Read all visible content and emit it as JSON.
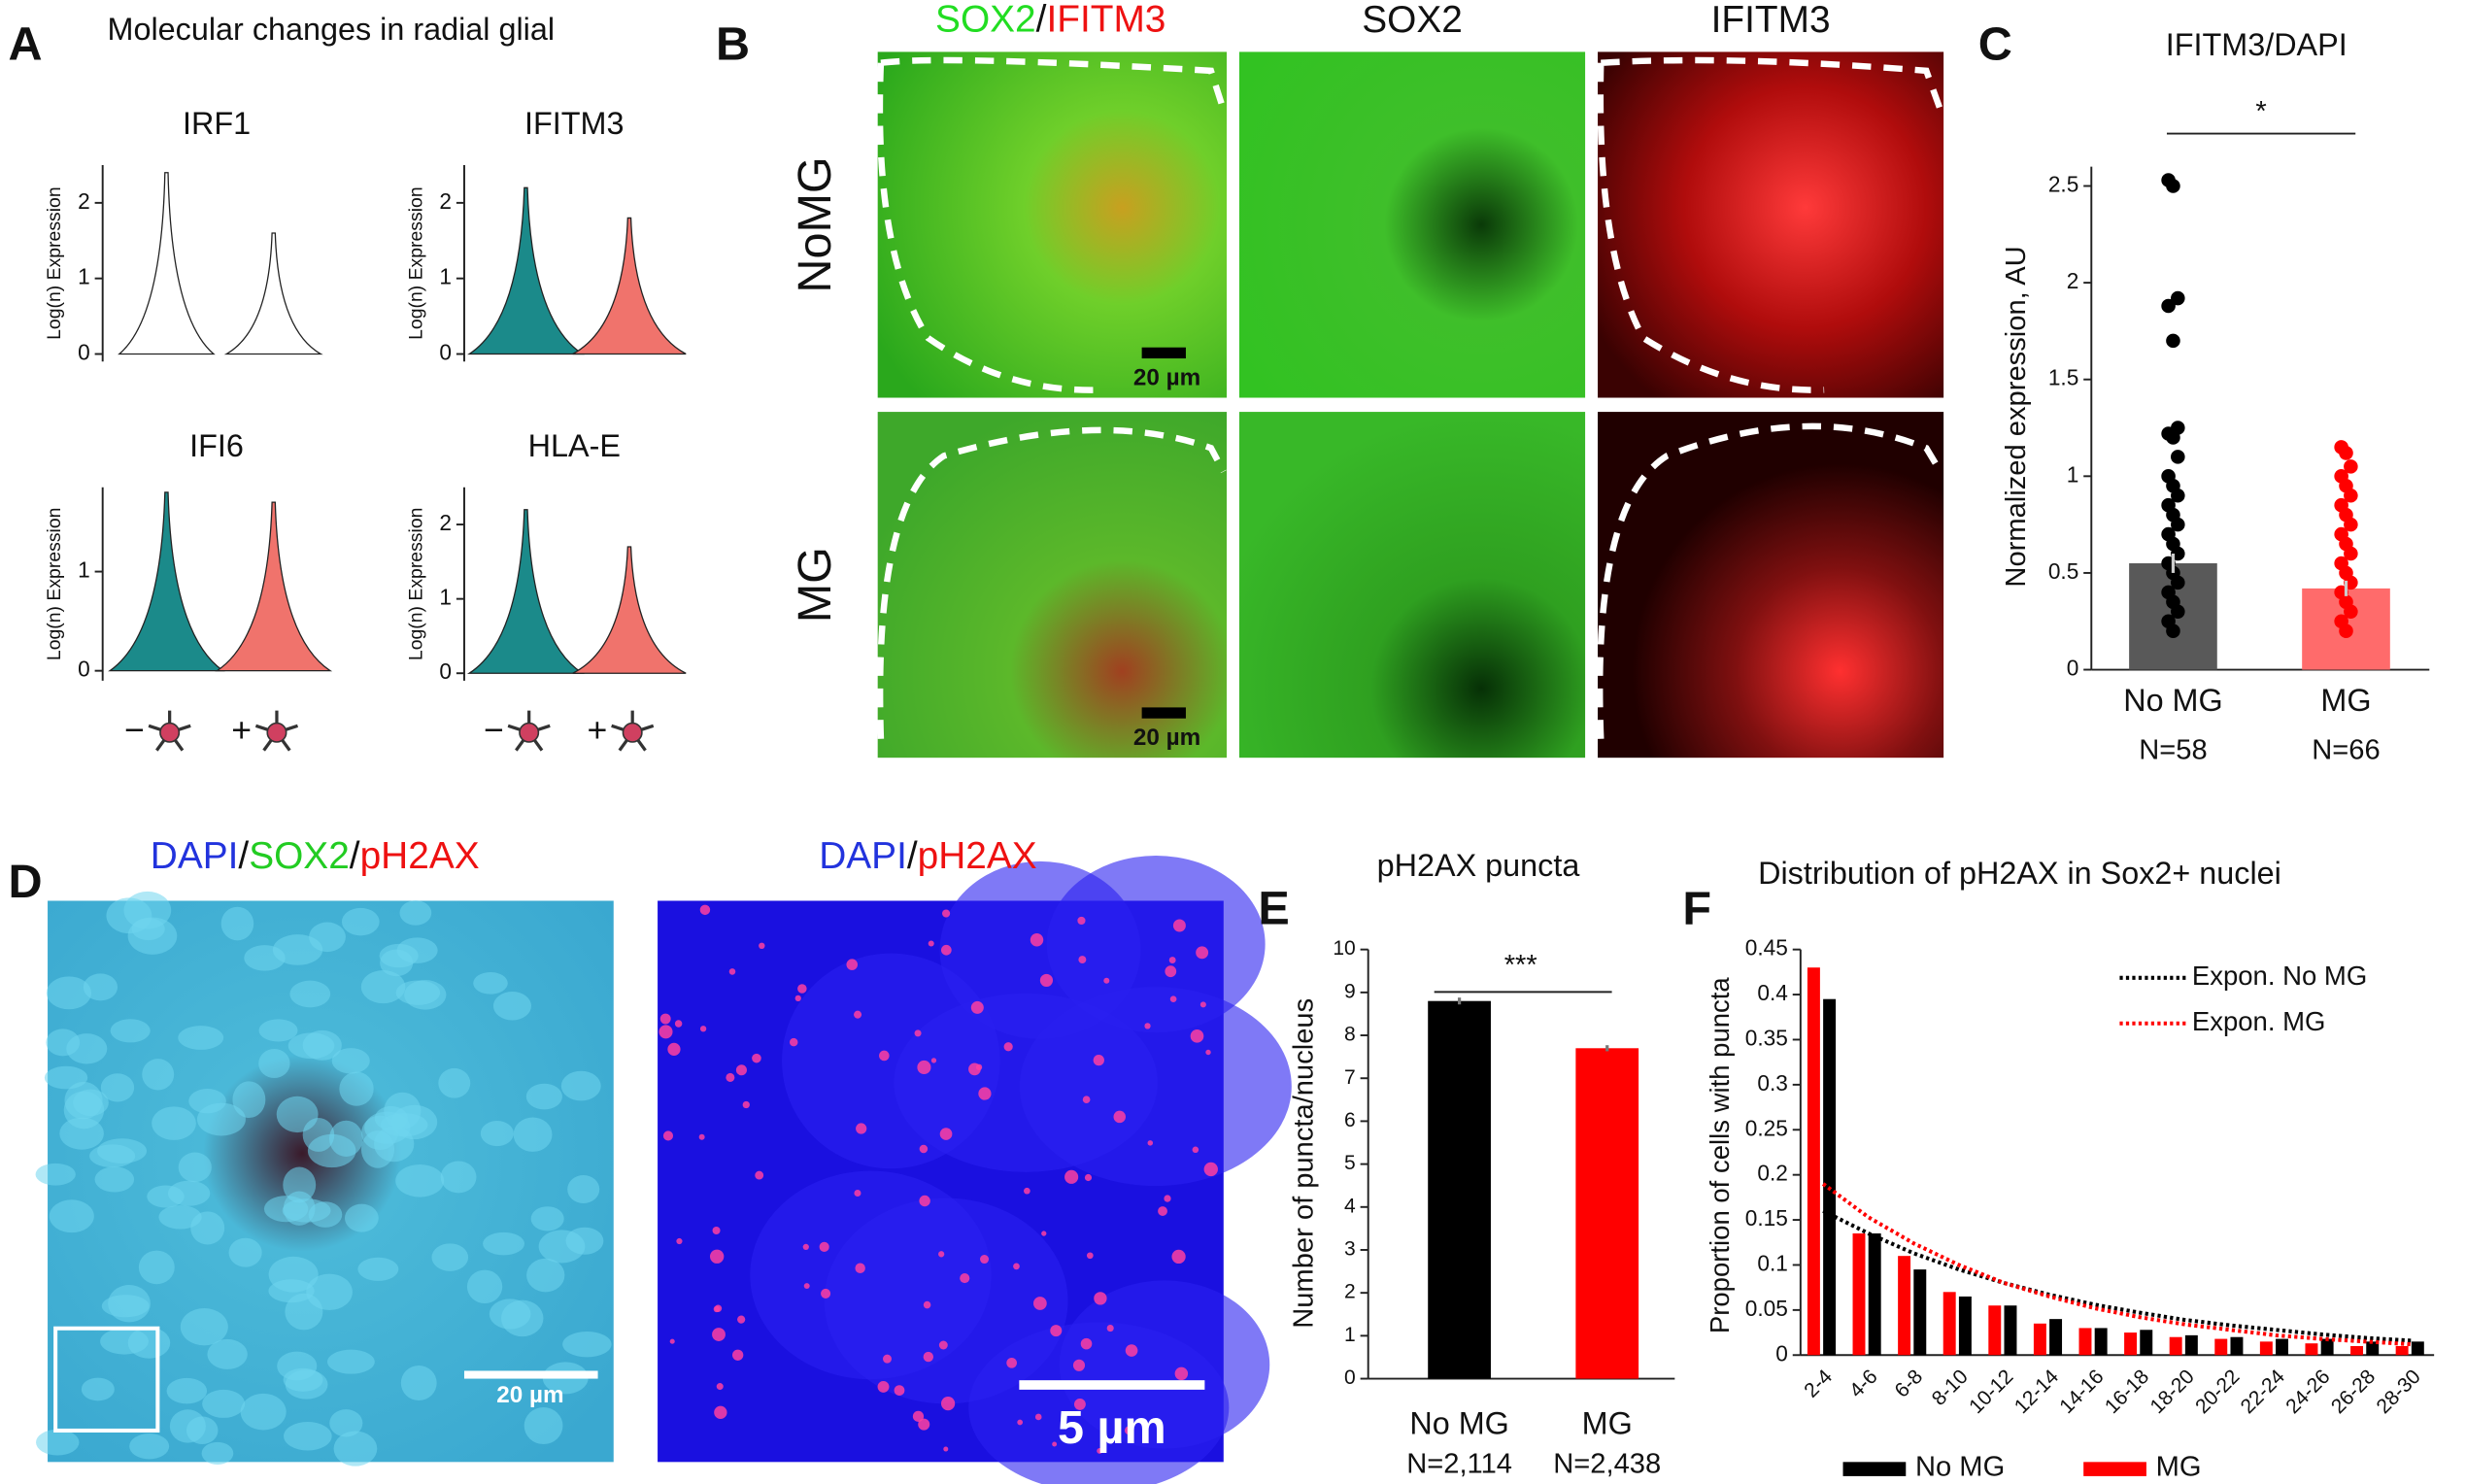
{
  "panel_letters": [
    "A",
    "B",
    "C",
    "D",
    "E",
    "F"
  ],
  "images": {
    "b_headers": [
      [
        "SOX2",
        "/",
        "IFITM3"
      ],
      [
        "SOX2"
      ],
      [
        "IFITM3"
      ]
    ],
    "b_rows": [
      "NoMG",
      "MG"
    ],
    "b_scale": "20 µm",
    "d_headers": [
      [
        "DAPI",
        "/",
        "SOX2",
        "/",
        "pH2AX"
      ],
      [
        "DAPI",
        "/",
        "pH2AX"
      ]
    ],
    "d_scale": [
      "20 µm",
      "5 µm"
    ]
  },
  "chart_data": [
    {
      "type": "violin",
      "title": "Molecular changes in radial glial",
      "categories": [
        "−",
        "+"
      ],
      "colors": [
        "#1b8a8a",
        "#f0736c"
      ],
      "subplots": [
        {
          "title": "IRF1",
          "ylabel": "Log(n) Expression",
          "ylim": [
            -0.1,
            2.5
          ],
          "yticks": [
            0,
            1,
            2
          ],
          "values": [
            2.4,
            1.6
          ]
        },
        {
          "title": "IFITM3",
          "ylabel": "Log(n) Expression",
          "ylim": [
            -0.1,
            2.5
          ],
          "yticks": [
            0,
            1,
            2
          ],
          "values": [
            2.2,
            1.8
          ]
        },
        {
          "title": "IFI6",
          "ylabel": "Log(n) Expression",
          "ylim": [
            -0.1,
            1.85
          ],
          "yticks": [
            0,
            1
          ],
          "values": [
            1.8,
            1.7
          ]
        },
        {
          "title": "HLA-E",
          "ylabel": "Log(n) Expression",
          "ylim": [
            -0.1,
            2.5
          ],
          "yticks": [
            0,
            1,
            2
          ],
          "values": [
            2.2,
            1.7
          ]
        }
      ]
    },
    {
      "type": "bar_scatter",
      "title": "IFITM3/DAPI",
      "ylabel": "Normalized expression, AU",
      "categories": [
        "No MG",
        "MG"
      ],
      "sample_sizes": [
        "N=58",
        "N=66"
      ],
      "values": [
        0.55,
        0.42
      ],
      "errors": [
        0.05,
        0.04
      ],
      "colors": [
        "#595959",
        "#ff6b6b"
      ],
      "point_colors": [
        "#000000",
        "#ff0000"
      ],
      "points": [
        [
          2.53,
          2.5,
          1.92,
          1.88,
          1.7,
          1.25,
          1.22,
          1.2,
          1.1,
          1.0,
          0.95,
          0.9,
          0.85,
          0.8,
          0.75,
          0.7,
          0.65,
          0.6,
          0.55,
          0.5,
          0.45,
          0.4,
          0.35,
          0.3,
          0.25,
          0.2
        ],
        [
          1.15,
          1.12,
          1.05,
          1.0,
          0.95,
          0.9,
          0.85,
          0.8,
          0.75,
          0.7,
          0.65,
          0.6,
          0.55,
          0.5,
          0.45,
          0.4,
          0.35,
          0.3,
          0.25,
          0.2
        ]
      ],
      "ylim": [
        0,
        2.6
      ],
      "yticks": [
        0,
        0.5,
        1,
        1.5,
        2,
        2.5
      ],
      "significance": "*"
    },
    {
      "type": "bar",
      "title": "pH2AX puncta",
      "ylabel": "Number of puncta/nucleus",
      "categories": [
        "No MG",
        "MG"
      ],
      "sample_sizes": [
        "N=2,114",
        "N=2,438"
      ],
      "values": [
        8.8,
        7.7
      ],
      "errors": [
        0.08,
        0.07
      ],
      "colors": [
        "#000000",
        "#ff0000"
      ],
      "ylim": [
        0,
        10
      ],
      "yticks": [
        0,
        1,
        2,
        3,
        4,
        5,
        6,
        7,
        8,
        9,
        10
      ],
      "significance": "***"
    },
    {
      "type": "grouped_bar",
      "title": "Distribution of pH2AX in Sox2+ nuclei",
      "ylabel": "Proportion of cells with puncta",
      "categories": [
        "2-4",
        "4-6",
        "6-8",
        "8-10",
        "10-12",
        "12-14",
        "14-16",
        "16-18",
        "18-20",
        "20-22",
        "22-24",
        "24-26",
        "26-28",
        "28-30"
      ],
      "series": [
        {
          "name": "No MG",
          "color": "#000000",
          "values": [
            0.395,
            0.135,
            0.095,
            0.065,
            0.055,
            0.04,
            0.03,
            0.028,
            0.022,
            0.02,
            0.018,
            0.018,
            0.015,
            0.015
          ]
        },
        {
          "name": "MG",
          "color": "#ff0000",
          "values": [
            0.43,
            0.135,
            0.11,
            0.07,
            0.055,
            0.035,
            0.03,
            0.025,
            0.02,
            0.018,
            0.015,
            0.013,
            0.01,
            0.01
          ]
        }
      ],
      "trendlines": [
        {
          "name": "Expon. No MG",
          "color": "#000000",
          "values": [
            0.16,
            0.135,
            0.113,
            0.095,
            0.08,
            0.067,
            0.056,
            0.047,
            0.039,
            0.033,
            0.028,
            0.023,
            0.019,
            0.016
          ]
        },
        {
          "name": "Expon.  MG",
          "color": "#ff0000",
          "values": [
            0.19,
            0.153,
            0.124,
            0.1,
            0.08,
            0.065,
            0.052,
            0.042,
            0.034,
            0.028,
            0.022,
            0.018,
            0.015,
            0.012
          ]
        }
      ],
      "ylim": [
        0,
        0.45
      ],
      "yticks": [
        0,
        0.05,
        0.1,
        0.15,
        0.2,
        0.25,
        0.3,
        0.35,
        0.4,
        0.45
      ]
    }
  ]
}
